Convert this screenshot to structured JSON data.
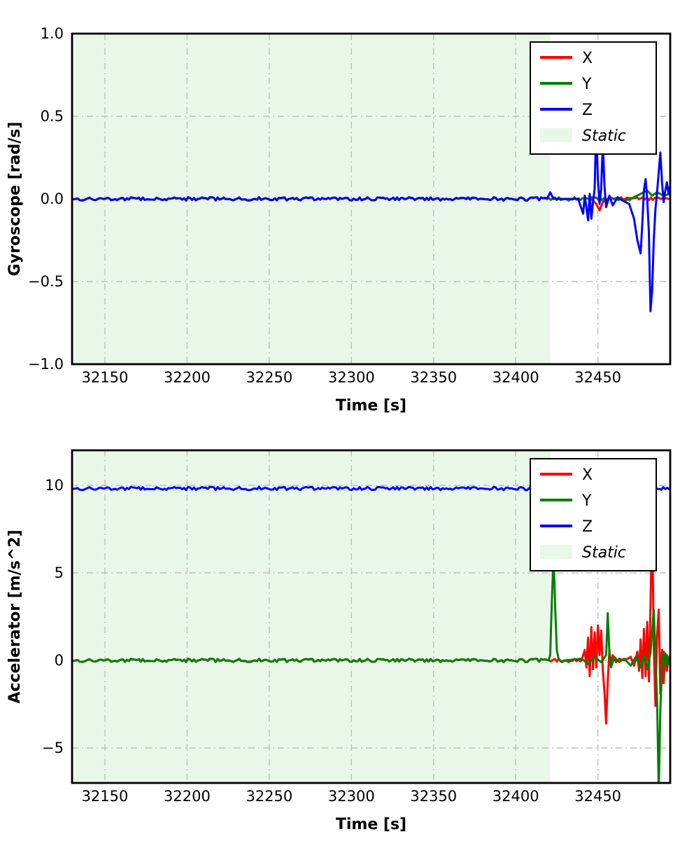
{
  "colors": {
    "x_series": "#ff0000",
    "y_series": "#008000",
    "z_series": "#0000ff",
    "static_fill": "#e9f7e9",
    "grid": "#bdbdbd",
    "spine": "#000000",
    "legend_bg": "#ffffff"
  },
  "chart_data": [
    {
      "type": "line",
      "title": "",
      "xlabel": "Time [s]",
      "ylabel": "Gyroscope [rad/s]",
      "xlim": [
        32130,
        32494
      ],
      "ylim": [
        -1.0,
        1.0
      ],
      "grid": true,
      "legend_position": "upper right",
      "xticks": [
        32150,
        32200,
        32250,
        32300,
        32350,
        32400,
        32450
      ],
      "xtick_labels": [
        "32150",
        "32200",
        "32250",
        "32300",
        "32350",
        "32400",
        "32450"
      ],
      "yticks": [
        1.0,
        0.5,
        0.0,
        -0.5,
        -1.0
      ],
      "ytick_labels": [
        "1.0",
        "0.5",
        "0.0",
        "−0.5",
        "−1.0"
      ],
      "static_region": {
        "x0": 32130,
        "x1": 32421,
        "label": "Static"
      },
      "legend": {
        "entries": [
          {
            "label": "X",
            "color": "#ff0000",
            "type": "line",
            "italic": false
          },
          {
            "label": "Y",
            "color": "#008000",
            "type": "line",
            "italic": false
          },
          {
            "label": "Z",
            "color": "#0000ff",
            "type": "line",
            "italic": false
          },
          {
            "label": "Static",
            "color": "#e9f7e9",
            "type": "patch",
            "italic": true
          }
        ]
      },
      "series": [
        {
          "name": "X",
          "color": "#ff0000",
          "points": [
            [
              32130,
              0
            ],
            [
              32446,
              0
            ],
            [
              32449,
              -0.03
            ],
            [
              32451,
              -0.07
            ],
            [
              32453,
              -0.02
            ],
            [
              32456,
              0
            ],
            [
              32494,
              0
            ]
          ]
        },
        {
          "name": "Y",
          "color": "#008000",
          "points": [
            [
              32130,
              0
            ],
            [
              32470,
              0
            ],
            [
              32476,
              0.03
            ],
            [
              32480,
              0.05
            ],
            [
              32483,
              0.02
            ],
            [
              32486,
              0.04
            ],
            [
              32490,
              0.02
            ],
            [
              32494,
              0.03
            ]
          ]
        },
        {
          "name": "Z",
          "color": "#0000ff",
          "points": [
            [
              32130,
              0
            ],
            [
              32419,
              0
            ],
            [
              32421,
              0.04
            ],
            [
              32423,
              0
            ],
            [
              32438,
              0
            ],
            [
              32441,
              -0.09
            ],
            [
              32442,
              0.02
            ],
            [
              32444,
              -0.13
            ],
            [
              32445,
              0.03
            ],
            [
              32446,
              -0.12
            ],
            [
              32447,
              -0.02
            ],
            [
              32448,
              0.06
            ],
            [
              32449,
              0.46
            ],
            [
              32450,
              0.12
            ],
            [
              32451,
              -0.03
            ],
            [
              32452,
              0.06
            ],
            [
              32453,
              0.34
            ],
            [
              32454,
              0.08
            ],
            [
              32455,
              -0.05
            ],
            [
              32457,
              0.02
            ],
            [
              32459,
              -0.04
            ],
            [
              32462,
              0.01
            ],
            [
              32465,
              -0.01
            ],
            [
              32469,
              -0.03
            ],
            [
              32472,
              -0.12
            ],
            [
              32474,
              -0.25
            ],
            [
              32476,
              -0.33
            ],
            [
              32477,
              -0.15
            ],
            [
              32478,
              0.05
            ],
            [
              32479,
              0.12
            ],
            [
              32480,
              0
            ],
            [
              32481,
              -0.2
            ],
            [
              32482,
              -0.68
            ],
            [
              32483,
              -0.55
            ],
            [
              32484,
              -0.25
            ],
            [
              32485,
              -0.06
            ],
            [
              32486,
              0.04
            ],
            [
              32488,
              0.28
            ],
            [
              32489,
              0.1
            ],
            [
              32490,
              -0.02
            ],
            [
              32491,
              0.05
            ],
            [
              32492,
              0.1
            ],
            [
              32493,
              0.03
            ],
            [
              32494,
              0.08
            ]
          ]
        }
      ]
    },
    {
      "type": "line",
      "title": "",
      "xlabel": "Time [s]",
      "ylabel": "Accelerator [m/s^2]",
      "xlim": [
        32130,
        32494
      ],
      "ylim": [
        -7,
        12
      ],
      "grid": true,
      "legend_position": "upper right",
      "xticks": [
        32150,
        32200,
        32250,
        32300,
        32350,
        32400,
        32450
      ],
      "xtick_labels": [
        "32150",
        "32200",
        "32250",
        "32300",
        "32350",
        "32400",
        "32450"
      ],
      "yticks": [
        10,
        5,
        0,
        -5
      ],
      "ytick_labels": [
        "10",
        "5",
        "0",
        "−5"
      ],
      "static_region": {
        "x0": 32130,
        "x1": 32421,
        "label": "Static"
      },
      "legend": {
        "entries": [
          {
            "label": "X",
            "color": "#ff0000",
            "type": "line",
            "italic": false
          },
          {
            "label": "Y",
            "color": "#008000",
            "type": "line",
            "italic": false
          },
          {
            "label": "Z",
            "color": "#0000ff",
            "type": "line",
            "italic": false
          },
          {
            "label": "Static",
            "color": "#e9f7e9",
            "type": "patch",
            "italic": true
          }
        ]
      },
      "series": [
        {
          "name": "X",
          "color": "#ff0000",
          "points": [
            [
              32130,
              0
            ],
            [
              32440,
              0
            ],
            [
              32442,
              0.6
            ],
            [
              32443,
              -0.4
            ],
            [
              32444,
              1.3
            ],
            [
              32445,
              -0.9
            ],
            [
              32446,
              1.9
            ],
            [
              32447,
              -0.5
            ],
            [
              32448,
              1.6
            ],
            [
              32449,
              -0.4
            ],
            [
              32450,
              2.0
            ],
            [
              32451,
              0.3
            ],
            [
              32452,
              1.7
            ],
            [
              32453,
              -0.6
            ],
            [
              32454,
              -1.8
            ],
            [
              32455,
              -3.6
            ],
            [
              32456,
              -1.2
            ],
            [
              32457,
              0.6
            ],
            [
              32458,
              -0.3
            ],
            [
              32459,
              0.3
            ],
            [
              32461,
              -0.1
            ],
            [
              32463,
              0.1
            ],
            [
              32466,
              0
            ],
            [
              32470,
              0.2
            ],
            [
              32472,
              -0.3
            ],
            [
              32474,
              0.5
            ],
            [
              32475,
              -0.6
            ],
            [
              32476,
              1.2
            ],
            [
              32477,
              -1.0
            ],
            [
              32478,
              1.8
            ],
            [
              32479,
              -0.9
            ],
            [
              32480,
              2.2
            ],
            [
              32481,
              -1.2
            ],
            [
              32482,
              3.1
            ],
            [
              32483,
              8.3
            ],
            [
              32484,
              0.8
            ],
            [
              32485,
              -2.6
            ],
            [
              32486,
              1.4
            ],
            [
              32487,
              2.9
            ],
            [
              32488,
              -1.9
            ],
            [
              32489,
              0.6
            ],
            [
              32490,
              -1.3
            ],
            [
              32491,
              0.4
            ],
            [
              32492,
              -0.6
            ],
            [
              32493,
              0.2
            ],
            [
              32494,
              -0.2
            ]
          ]
        },
        {
          "name": "Y",
          "color": "#008000",
          "points": [
            [
              32130,
              0
            ],
            [
              32420,
              0
            ],
            [
              32421,
              0.3
            ],
            [
              32422,
              3.5
            ],
            [
              32423,
              6.1
            ],
            [
              32424,
              3.0
            ],
            [
              32425,
              0.6
            ],
            [
              32426,
              0.1
            ],
            [
              32428,
              -0.1
            ],
            [
              32430,
              0
            ],
            [
              32440,
              0.1
            ],
            [
              32444,
              -0.2
            ],
            [
              32448,
              0.2
            ],
            [
              32452,
              -0.1
            ],
            [
              32455,
              0.3
            ],
            [
              32456,
              2.7
            ],
            [
              32457,
              0.4
            ],
            [
              32458,
              -0.4
            ],
            [
              32460,
              0.2
            ],
            [
              32463,
              -0.1
            ],
            [
              32466,
              0.1
            ],
            [
              32470,
              -0.3
            ],
            [
              32473,
              0.2
            ],
            [
              32476,
              -0.4
            ],
            [
              32478,
              0.3
            ],
            [
              32480,
              -0.5
            ],
            [
              32482,
              0.4
            ],
            [
              32484,
              2.9
            ],
            [
              32485,
              0.3
            ],
            [
              32486,
              -2.2
            ],
            [
              32487,
              -7.5
            ],
            [
              32488,
              -2.8
            ],
            [
              32489,
              -0.4
            ],
            [
              32490,
              0.5
            ],
            [
              32491,
              -0.3
            ],
            [
              32492,
              0.3
            ],
            [
              32493,
              -0.2
            ],
            [
              32494,
              0.1
            ]
          ]
        },
        {
          "name": "Z",
          "color": "#0000ff",
          "points": [
            [
              32130,
              9.82
            ],
            [
              32494,
              9.82
            ]
          ]
        }
      ]
    }
  ]
}
